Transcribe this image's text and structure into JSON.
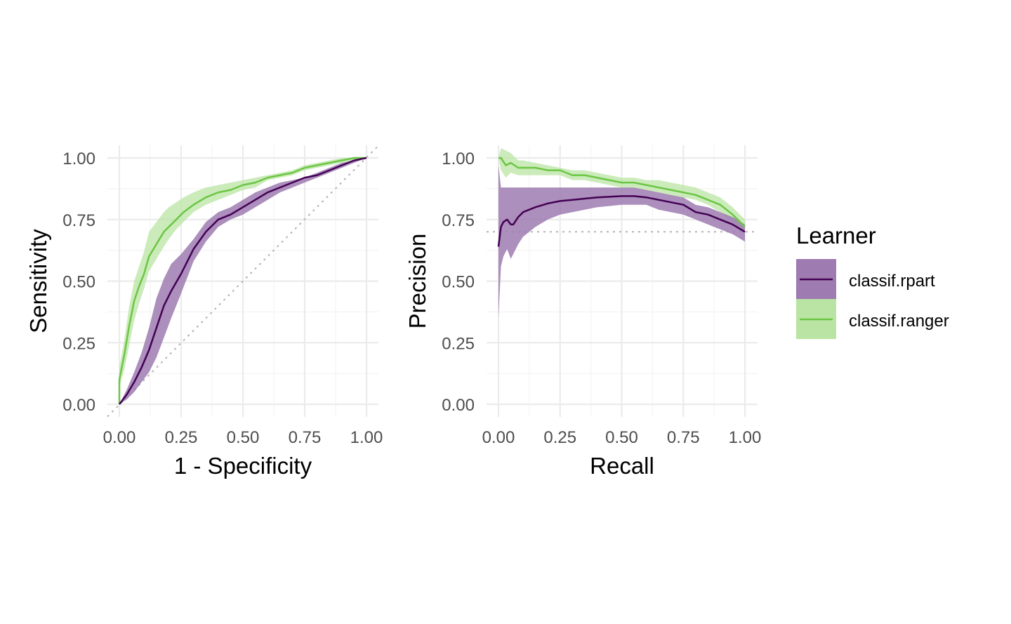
{
  "colors": {
    "rpart_line": "#440154",
    "rpart_band": "#9e7bb0",
    "ranger_line": "#6cc644",
    "ranger_band": "#b9e4a3",
    "grid_major": "#ebebeb",
    "grid_minor": "#f4f4f4",
    "reference_line": "#b3b3b3"
  },
  "legend": {
    "title": "Learner",
    "entries": [
      {
        "label": "classif.rpart",
        "color": "#440154",
        "fill": "#9e7bb0"
      },
      {
        "label": "classif.ranger",
        "color": "#6cc644",
        "fill": "#b9e4a3"
      }
    ]
  },
  "chart_data": [
    {
      "type": "line",
      "title": "",
      "xlabel": "1 - Specificity",
      "ylabel": "Sensitivity",
      "xlim": [
        0,
        1
      ],
      "ylim": [
        0,
        1
      ],
      "xticks": [
        "0.00",
        "0.25",
        "0.50",
        "0.75",
        "1.00"
      ],
      "yticks": [
        "0.00",
        "0.25",
        "0.50",
        "0.75",
        "1.00"
      ],
      "grid": true,
      "reference_line": {
        "type": "diagonal",
        "style": "dotted"
      },
      "series": [
        {
          "name": "classif.ranger",
          "x": [
            0.0,
            0.0,
            0.02,
            0.04,
            0.06,
            0.08,
            0.1,
            0.12,
            0.15,
            0.18,
            0.2,
            0.23,
            0.26,
            0.3,
            0.35,
            0.4,
            0.45,
            0.5,
            0.55,
            0.6,
            0.65,
            0.7,
            0.75,
            0.8,
            0.85,
            0.9,
            0.95,
            1.0
          ],
          "y": [
            0.0,
            0.1,
            0.2,
            0.32,
            0.42,
            0.48,
            0.53,
            0.6,
            0.65,
            0.7,
            0.72,
            0.75,
            0.78,
            0.81,
            0.84,
            0.86,
            0.87,
            0.89,
            0.9,
            0.92,
            0.93,
            0.94,
            0.96,
            0.97,
            0.98,
            0.99,
            1.0,
            1.0
          ],
          "lower": [
            0.0,
            0.07,
            0.14,
            0.24,
            0.34,
            0.41,
            0.47,
            0.54,
            0.59,
            0.64,
            0.67,
            0.71,
            0.74,
            0.78,
            0.81,
            0.83,
            0.85,
            0.87,
            0.88,
            0.91,
            0.92,
            0.93,
            0.95,
            0.96,
            0.97,
            0.98,
            0.99,
            1.0
          ],
          "upper": [
            0.0,
            0.15,
            0.26,
            0.4,
            0.5,
            0.56,
            0.62,
            0.7,
            0.74,
            0.78,
            0.8,
            0.82,
            0.84,
            0.86,
            0.88,
            0.89,
            0.9,
            0.91,
            0.92,
            0.93,
            0.94,
            0.95,
            0.97,
            0.98,
            0.99,
            1.0,
            1.0,
            1.0
          ]
        },
        {
          "name": "classif.rpart",
          "x": [
            0.0,
            0.03,
            0.06,
            0.09,
            0.12,
            0.15,
            0.18,
            0.21,
            0.25,
            0.3,
            0.35,
            0.4,
            0.45,
            0.5,
            0.55,
            0.6,
            0.65,
            0.7,
            0.75,
            0.8,
            0.85,
            0.9,
            0.95,
            1.0
          ],
          "y": [
            0.0,
            0.04,
            0.09,
            0.15,
            0.22,
            0.31,
            0.4,
            0.46,
            0.53,
            0.63,
            0.7,
            0.75,
            0.77,
            0.8,
            0.83,
            0.86,
            0.88,
            0.9,
            0.92,
            0.93,
            0.95,
            0.97,
            0.99,
            1.0
          ],
          "lower": [
            0.0,
            0.02,
            0.05,
            0.09,
            0.13,
            0.19,
            0.27,
            0.35,
            0.45,
            0.58,
            0.66,
            0.72,
            0.75,
            0.77,
            0.8,
            0.83,
            0.86,
            0.88,
            0.9,
            0.92,
            0.94,
            0.96,
            0.98,
            1.0
          ],
          "upper": [
            0.0,
            0.06,
            0.13,
            0.21,
            0.31,
            0.43,
            0.51,
            0.57,
            0.61,
            0.67,
            0.74,
            0.78,
            0.8,
            0.83,
            0.86,
            0.88,
            0.9,
            0.91,
            0.92,
            0.94,
            0.96,
            0.98,
            0.99,
            1.0
          ]
        }
      ]
    },
    {
      "type": "line",
      "title": "",
      "xlabel": "Recall",
      "ylabel": "Precision",
      "xlim": [
        0,
        1
      ],
      "ylim": [
        0,
        1
      ],
      "xticks": [
        "0.00",
        "0.25",
        "0.50",
        "0.75",
        "1.00"
      ],
      "yticks": [
        "0.00",
        "0.25",
        "0.50",
        "0.75",
        "1.00"
      ],
      "grid": true,
      "reference_line": {
        "type": "horizontal",
        "y": 0.7,
        "style": "dotted"
      },
      "series": [
        {
          "name": "classif.ranger",
          "x": [
            0.0,
            0.01,
            0.03,
            0.05,
            0.08,
            0.1,
            0.15,
            0.2,
            0.25,
            0.3,
            0.35,
            0.4,
            0.45,
            0.5,
            0.55,
            0.6,
            0.65,
            0.7,
            0.75,
            0.8,
            0.85,
            0.9,
            0.95,
            1.0
          ],
          "y": [
            1.0,
            1.0,
            0.97,
            0.98,
            0.96,
            0.96,
            0.96,
            0.95,
            0.95,
            0.93,
            0.93,
            0.92,
            0.91,
            0.9,
            0.9,
            0.89,
            0.88,
            0.87,
            0.86,
            0.85,
            0.83,
            0.81,
            0.77,
            0.72
          ],
          "lower": [
            1.0,
            0.95,
            0.92,
            0.94,
            0.93,
            0.93,
            0.93,
            0.93,
            0.93,
            0.91,
            0.91,
            0.9,
            0.89,
            0.88,
            0.88,
            0.87,
            0.86,
            0.85,
            0.84,
            0.83,
            0.81,
            0.78,
            0.74,
            0.7
          ],
          "upper": [
            1.0,
            1.04,
            1.03,
            1.02,
            0.99,
            0.99,
            0.98,
            0.97,
            0.96,
            0.95,
            0.95,
            0.94,
            0.93,
            0.92,
            0.92,
            0.91,
            0.91,
            0.9,
            0.89,
            0.88,
            0.86,
            0.84,
            0.8,
            0.75
          ]
        },
        {
          "name": "classif.rpart",
          "x": [
            0.0,
            0.01,
            0.02,
            0.035,
            0.05,
            0.06,
            0.08,
            0.1,
            0.15,
            0.2,
            0.25,
            0.3,
            0.4,
            0.5,
            0.55,
            0.6,
            0.65,
            0.7,
            0.75,
            0.8,
            0.85,
            0.9,
            0.95,
            1.0
          ],
          "y": [
            0.64,
            0.72,
            0.74,
            0.75,
            0.73,
            0.73,
            0.76,
            0.78,
            0.8,
            0.815,
            0.825,
            0.83,
            0.84,
            0.845,
            0.845,
            0.84,
            0.83,
            0.82,
            0.81,
            0.78,
            0.77,
            0.75,
            0.73,
            0.7
          ],
          "lower": [
            0.35,
            0.56,
            0.6,
            0.63,
            0.59,
            0.61,
            0.65,
            0.68,
            0.72,
            0.75,
            0.77,
            0.78,
            0.8,
            0.81,
            0.81,
            0.81,
            0.79,
            0.78,
            0.77,
            0.75,
            0.73,
            0.71,
            0.69,
            0.66
          ],
          "upper": [
            0.97,
            0.88,
            0.88,
            0.88,
            0.88,
            0.88,
            0.88,
            0.88,
            0.88,
            0.88,
            0.88,
            0.88,
            0.88,
            0.88,
            0.88,
            0.87,
            0.86,
            0.85,
            0.84,
            0.81,
            0.8,
            0.78,
            0.76,
            0.73
          ]
        }
      ]
    }
  ]
}
